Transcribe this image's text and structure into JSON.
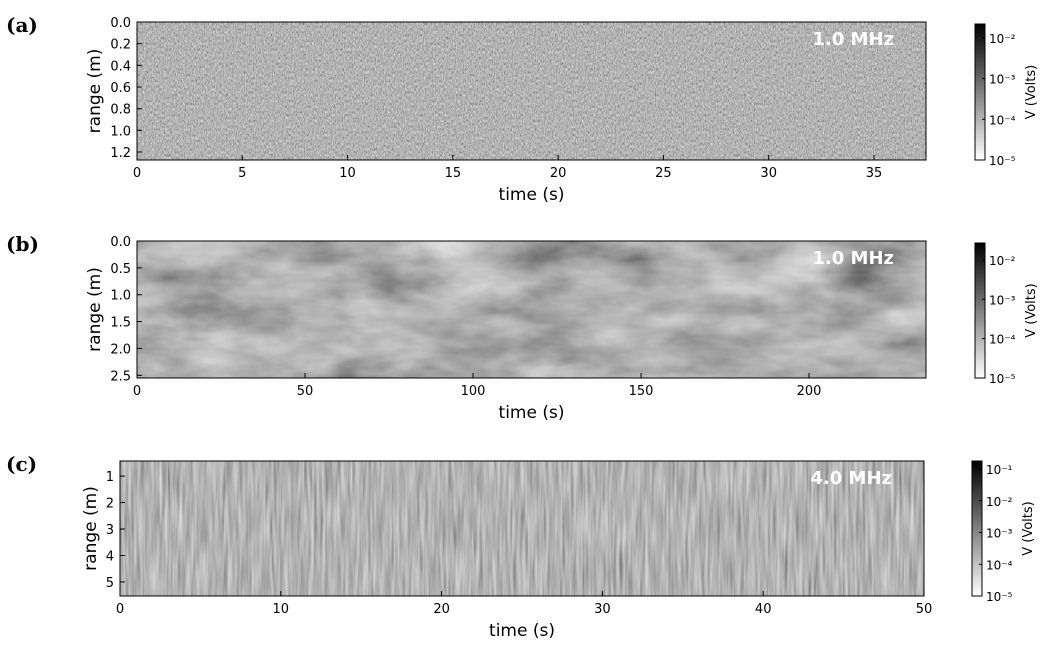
{
  "chart_data": [
    {
      "type": "heatmap",
      "panel_label": "(a)",
      "annotation": "1.0 MHz",
      "xlabel": "time (s)",
      "ylabel": "range (m)",
      "xlim": [
        0,
        37.47
      ],
      "xticks": [
        0,
        5,
        10,
        15,
        20,
        25,
        30,
        35
      ],
      "ylim": [
        1.274,
        0
      ],
      "yticks": [
        {
          "value": 0,
          "label": "0.0"
        },
        0.2,
        0.4,
        0.6,
        0.8,
        {
          "value": 1,
          "label": "1.0"
        },
        1.2
      ],
      "colorbar": {
        "label": "V (Volts)",
        "log": true,
        "lim": [
          1e-05,
          0.022
        ],
        "ticks": [
          {
            "value": 0.01,
            "label": "10⁻²"
          },
          {
            "value": 0.001,
            "label": "10⁻³"
          },
          {
            "value": 0.0001,
            "label": "10⁻⁴"
          },
          {
            "value": 1e-05,
            "label": "10⁻⁵"
          }
        ]
      }
    },
    {
      "type": "heatmap",
      "panel_label": "(b)",
      "annotation": "1.0 MHz",
      "xlabel": "time (s)",
      "ylabel": "range (m)",
      "xlim": [
        0,
        234.8
      ],
      "xticks": [
        0,
        50,
        100,
        150,
        200
      ],
      "ylim": [
        2.55,
        0
      ],
      "yticks": [
        {
          "value": 0,
          "label": "0.0"
        },
        0.5,
        {
          "value": 1,
          "label": "1.0"
        },
        1.5,
        {
          "value": 2,
          "label": "2.0"
        },
        2.5
      ],
      "colorbar": {
        "label": "V (Volts)",
        "log": true,
        "lim": [
          1e-05,
          0.027
        ],
        "ticks": [
          {
            "value": 0.01,
            "label": "10⁻²"
          },
          {
            "value": 0.001,
            "label": "10⁻³"
          },
          {
            "value": 0.0001,
            "label": "10⁻⁴"
          },
          {
            "value": 1e-05,
            "label": "10⁻⁵"
          }
        ]
      }
    },
    {
      "type": "heatmap",
      "panel_label": "(c)",
      "annotation": "4.0 MHz",
      "xlabel": "time (s)",
      "ylabel": "range (m)",
      "xlim": [
        0,
        50
      ],
      "xticks": [
        0,
        10,
        20,
        30,
        40,
        50
      ],
      "ylim": [
        5.53,
        0.43
      ],
      "yticks": [
        1,
        2,
        3,
        4,
        5
      ],
      "colorbar": {
        "label": "V (Volts)",
        "log": true,
        "lim": [
          1e-05,
          0.18
        ],
        "ticks": [
          {
            "value": 0.1,
            "label": "10⁻¹"
          },
          {
            "value": 0.01,
            "label": "10⁻²"
          },
          {
            "value": 0.001,
            "label": "10⁻³"
          },
          {
            "value": 0.0001,
            "label": "10⁻⁴"
          },
          {
            "value": 1e-05,
            "label": "10⁻⁵"
          }
        ]
      }
    }
  ]
}
